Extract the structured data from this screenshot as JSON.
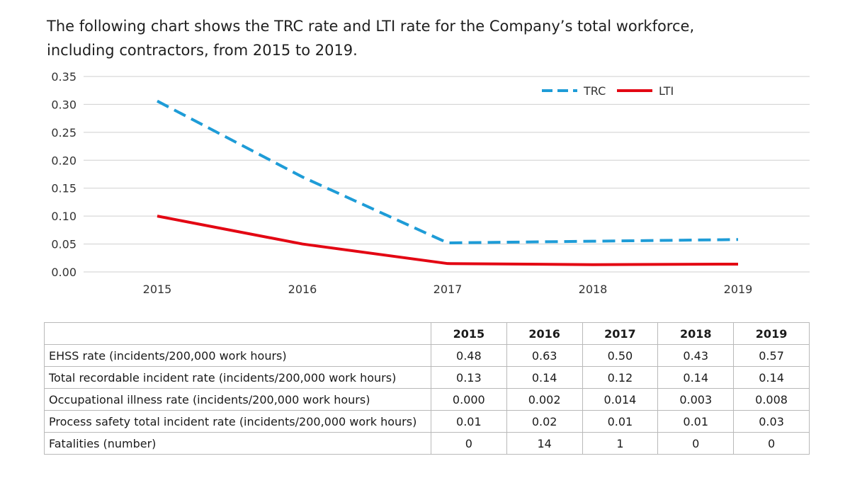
{
  "intro_text": "The following chart shows the TRC rate and LTI rate for the Company’s total workforce, including contractors, from 2015 to 2019.",
  "chart_data": {
    "type": "line",
    "title": "",
    "xlabel": "",
    "ylabel": "",
    "x": [
      "2015",
      "2016",
      "2017",
      "2018",
      "2019"
    ],
    "ylim": [
      0,
      0.35
    ],
    "yticks": [
      "0.00",
      "0.05",
      "0.10",
      "0.15",
      "0.20",
      "0.25",
      "0.30",
      "0.35"
    ],
    "grid": "horizontal",
    "legend_position": "top-right",
    "series": [
      {
        "name": "TRC",
        "values": [
          0.306,
          0.17,
          0.052,
          0.055,
          0.058
        ],
        "color": "#1e9cd7",
        "style": "dashed"
      },
      {
        "name": "LTI",
        "values": [
          0.1,
          0.05,
          0.015,
          0.013,
          0.014
        ],
        "color": "#e30613",
        "style": "solid"
      }
    ]
  },
  "table": {
    "header_label": "",
    "years": [
      "2015",
      "2016",
      "2017",
      "2018",
      "2019"
    ],
    "rows": [
      {
        "label": "EHSS rate (incidents/200,000 work hours)",
        "values": [
          "0.48",
          "0.63",
          "0.50",
          "0.43",
          "0.57"
        ]
      },
      {
        "label": "Total recordable incident rate (incidents/200,000 work hours)",
        "values": [
          "0.13",
          "0.14",
          "0.12",
          "0.14",
          "0.14"
        ]
      },
      {
        "label": "Occupational illness rate (incidents/200,000 work hours)",
        "values": [
          "0.000",
          "0.002",
          "0.014",
          "0.003",
          "0.008"
        ]
      },
      {
        "label": "Process safety total incident rate (incidents/200,000 work hours)",
        "values": [
          "0.01",
          "0.02",
          "0.01",
          "0.01",
          "0.03"
        ]
      },
      {
        "label": "Fatalities (number)",
        "values": [
          "0",
          "14",
          "1",
          "0",
          "0"
        ]
      }
    ]
  }
}
